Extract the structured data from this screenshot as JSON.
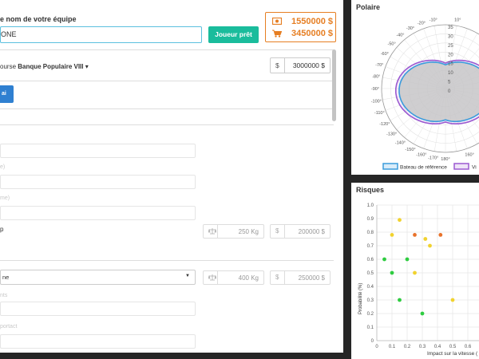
{
  "team": {
    "label": "e nom de votre équipe",
    "value": "ONE",
    "play_label": "Joueur prêt"
  },
  "money": {
    "cash": "1550000 $",
    "cart": "3450000 $",
    "color": "#e67e22"
  },
  "race": {
    "prefix": "ourse",
    "name": "Banque Populaire VIII",
    "caret": "▾",
    "budget_currency": "$",
    "budget_value": "3000000 $"
  },
  "blue_button_label": "ai",
  "form": {
    "ghost_1": "e)",
    "ghost_2": "me)",
    "row1_symbol": "p",
    "row1_weight": "250 Kg",
    "row1_currency": "$",
    "row1_price": "200000 $",
    "select_value": "ne",
    "select_caret": "▼",
    "row2_weight": "400 Kg",
    "row2_currency": "$",
    "row2_price": "250000 $",
    "ghost_3": "nts",
    "ghost_4": "portact"
  },
  "polar": {
    "title": "Polaire",
    "legend": [
      "Bateau de référence",
      "Vi"
    ],
    "colors": {
      "reference": "#3a9bdc",
      "variant": "#9b59d0"
    },
    "angle_labels_left": [
      "-10°",
      "-20°",
      "-30°",
      "-40°",
      "-50°",
      "-60°",
      "-70°",
      "-80°",
      "-90°",
      "-100°",
      "-110°",
      "-120°",
      "-130°",
      "-140°",
      "-150°",
      "-160°",
      "-170°",
      "180°"
    ],
    "angle_labels_right": [
      "10°",
      "160°"
    ],
    "radial_labels": [
      "35",
      "30",
      "25",
      "20",
      "15",
      "10",
      "5",
      "0"
    ]
  },
  "risks": {
    "title": "Risques",
    "ylabel": "Probabilité (%)",
    "xlabel": "Impact sur la vitesse (",
    "colors": {
      "green": "#2ecc40",
      "yellow": "#f1d22e",
      "orange": "#e8722a"
    }
  },
  "chart_data": {
    "type": "scatter",
    "title": "Risques",
    "xlabel": "Impact sur la vitesse (",
    "ylabel": "Probabilité (%)",
    "xlim": [
      0,
      0.65
    ],
    "ylim": [
      0,
      1.0
    ],
    "x_ticks": [
      "0",
      "0.1",
      "0.2",
      "0.3",
      "0.4",
      "0.5",
      "0.6"
    ],
    "y_ticks": [
      "0",
      "0.1",
      "0.2",
      "0.3",
      "0.4",
      "0.5",
      "0.6",
      "0.7",
      "0.8",
      "0.9",
      "1.0"
    ],
    "points": [
      {
        "x": 0.15,
        "y": 0.89,
        "color": "yellow"
      },
      {
        "x": 0.1,
        "y": 0.78,
        "color": "yellow"
      },
      {
        "x": 0.25,
        "y": 0.78,
        "color": "orange"
      },
      {
        "x": 0.42,
        "y": 0.78,
        "color": "orange"
      },
      {
        "x": 0.32,
        "y": 0.75,
        "color": "yellow"
      },
      {
        "x": 0.35,
        "y": 0.7,
        "color": "yellow"
      },
      {
        "x": 0.05,
        "y": 0.6,
        "color": "green"
      },
      {
        "x": 0.2,
        "y": 0.6,
        "color": "green"
      },
      {
        "x": 0.1,
        "y": 0.5,
        "color": "green"
      },
      {
        "x": 0.25,
        "y": 0.5,
        "color": "yellow"
      },
      {
        "x": 0.15,
        "y": 0.3,
        "color": "green"
      },
      {
        "x": 0.5,
        "y": 0.3,
        "color": "yellow"
      },
      {
        "x": 0.3,
        "y": 0.2,
        "color": "green"
      }
    ]
  }
}
